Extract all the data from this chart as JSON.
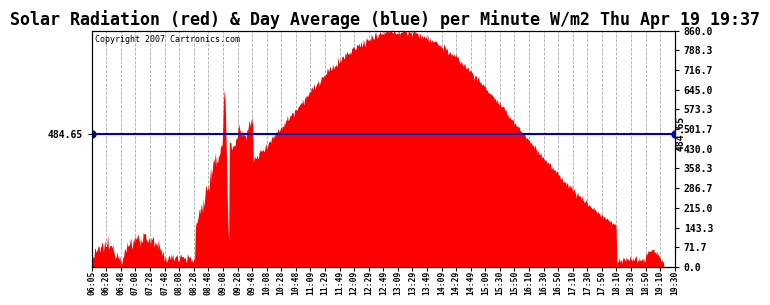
{
  "title": "Solar Radiation (red) & Day Average (blue) per Minute W/m2 Thu Apr 19 19:37",
  "copyright": "Copyright 2007 Cartronics.com",
  "y_left_label": "484.65",
  "y_right_label": "484.65",
  "y_ticks_right": [
    0.0,
    71.7,
    143.3,
    215.0,
    286.7,
    358.3,
    430.0,
    501.7,
    573.3,
    645.0,
    716.7,
    788.3,
    860.0
  ],
  "y_max": 860.0,
  "y_min": 0.0,
  "avg_value": 484.65,
  "fill_color": "#FF0000",
  "line_color": "#0000BB",
  "background_color": "#FFFFFF",
  "plot_bg_color": "#FFFFFF",
  "grid_color": "#AAAAAA",
  "title_font_size": 12,
  "x_tick_labels": [
    "06:05",
    "06:28",
    "06:48",
    "07:08",
    "07:28",
    "07:48",
    "08:08",
    "08:28",
    "08:48",
    "09:08",
    "09:28",
    "09:48",
    "10:08",
    "10:28",
    "10:48",
    "11:09",
    "11:29",
    "11:49",
    "12:09",
    "12:29",
    "12:49",
    "13:09",
    "13:29",
    "13:49",
    "14:09",
    "14:29",
    "14:49",
    "15:09",
    "15:30",
    "15:50",
    "16:10",
    "16:30",
    "16:50",
    "17:10",
    "17:30",
    "17:50",
    "18:10",
    "18:30",
    "18:50",
    "19:10",
    "19:30"
  ]
}
